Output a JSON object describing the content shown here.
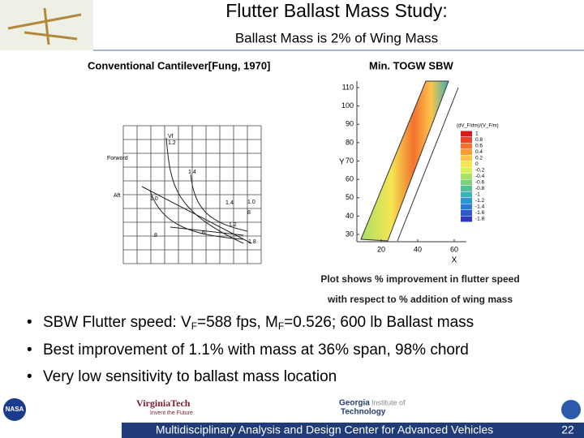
{
  "header": {
    "title": "Flutter Ballast Mass Study:",
    "subtitle": "Ballast Mass is 2% of Wing Mass"
  },
  "left_figure": {
    "title": "Conventional Cantilever[Fung, 1970]",
    "labels": [
      "Forword",
      "Aft",
      "Vf",
      "1.2",
      "1.4",
      "1.0",
      "1.4",
      "1.0",
      "1.2",
      ".8",
      ".6",
      "8",
      "1.8"
    ]
  },
  "right_figure": {
    "title": "Min. TOGW SBW",
    "y_label": "Y",
    "x_label": "X",
    "yticks": [
      110,
      100,
      90,
      80,
      70,
      60,
      50,
      40,
      30
    ],
    "xticks": [
      20,
      40,
      60
    ],
    "legend": {
      "title": "(dV_F/dm)/(V_F/m)",
      "items": [
        {
          "label": 1,
          "color": "#d7191c"
        },
        {
          "label": 0.8,
          "color": "#e8452a"
        },
        {
          "label": 0.6,
          "color": "#f4722f"
        },
        {
          "label": 0.4,
          "color": "#f99d3a"
        },
        {
          "label": 0.2,
          "color": "#fcc44a"
        },
        {
          "label": 0,
          "color": "#f6e552"
        },
        {
          "label": -0.2,
          "color": "#d7ef5a"
        },
        {
          "label": -0.4,
          "color": "#a9e067"
        },
        {
          "label": -0.6,
          "color": "#7ccf7c"
        },
        {
          "label": -0.8,
          "color": "#55c09a"
        },
        {
          "label": -1,
          "color": "#3db0b8"
        },
        {
          "label": -1.2,
          "color": "#2b97d0"
        },
        {
          "label": -1.4,
          "color": "#2a78d8"
        },
        {
          "label": -1.6,
          "color": "#2d58d2"
        },
        {
          "label": -1.8,
          "color": "#2f3bbf"
        }
      ]
    },
    "caption": [
      "Plot shows % improvement in flutter speed",
      "with respect to % addition of wing mass"
    ]
  },
  "bullets": [
    [
      "SBW Flutter speed: V",
      "F",
      "=588 fps, M",
      "F",
      "=0.526; 600 lb Ballast mass"
    ],
    [
      "Best improvement of 1.1% with mass at 36% span, 98% chord"
    ],
    [
      "Very low sensitivity to ballast mass location"
    ]
  ],
  "footer": {
    "logos": [
      "NASA",
      "VirginiaTech",
      "Invent the Future",
      "Georgia",
      "Institute of",
      "Technology"
    ],
    "text": "Multidisciplinary Analysis and Design Center for Advanced Vehicles",
    "page": 22
  }
}
